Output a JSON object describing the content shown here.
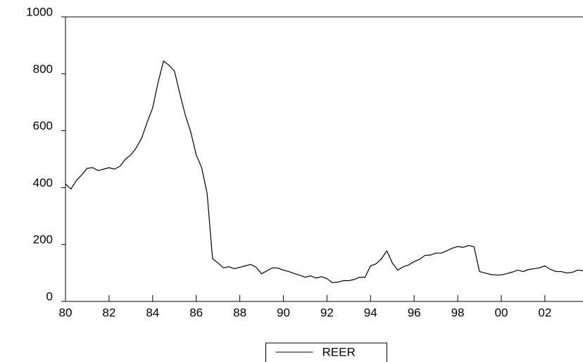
{
  "chart_data": {
    "type": "line",
    "x": [
      80,
      80.25,
      80.5,
      80.75,
      81,
      81.25,
      81.5,
      81.75,
      82,
      82.25,
      82.5,
      82.75,
      83,
      83.25,
      83.5,
      83.75,
      84,
      84.25,
      84.5,
      84.75,
      85,
      85.25,
      85.5,
      85.75,
      86,
      86.25,
      86.5,
      86.75,
      87,
      87.25,
      87.5,
      87.75,
      88,
      88.25,
      88.5,
      88.75,
      89,
      89.25,
      89.5,
      89.75,
      90,
      90.25,
      90.5,
      90.75,
      91,
      91.25,
      91.5,
      91.75,
      92,
      92.25,
      92.5,
      92.75,
      93,
      93.25,
      93.5,
      93.75,
      94,
      94.25,
      94.5,
      94.75,
      95,
      95.25,
      95.5,
      95.75,
      96,
      96.25,
      96.5,
      96.75,
      97,
      97.25,
      97.5,
      97.75,
      98,
      98.25,
      98.5,
      98.75,
      99,
      99.25,
      99.5,
      99.75,
      100,
      100.25,
      100.5,
      100.75,
      101,
      101.25,
      101.5,
      101.75,
      102,
      102.25,
      102.5,
      102.75,
      103,
      103.25,
      103.5,
      103.75
    ],
    "series": [
      {
        "name": "REER",
        "color": "#000000",
        "values": [
          413,
          395,
          425,
          445,
          468,
          470,
          460,
          465,
          470,
          465,
          475,
          500,
          515,
          540,
          575,
          630,
          680,
          770,
          845,
          830,
          810,
          730,
          655,
          595,
          515,
          470,
          380,
          150,
          135,
          118,
          122,
          115,
          120,
          125,
          130,
          120,
          97,
          108,
          118,
          117,
          110,
          105,
          98,
          92,
          85,
          90,
          82,
          87,
          80,
          66,
          68,
          73,
          73,
          77,
          85,
          85,
          125,
          132,
          150,
          178,
          135,
          110,
          122,
          128,
          140,
          148,
          162,
          163,
          170,
          170,
          178,
          187,
          193,
          190,
          197,
          192,
          105,
          100,
          95,
          93,
          93,
          98,
          103,
          110,
          105,
          112,
          115,
          118,
          125,
          113,
          105,
          105,
          100,
          102,
          110,
          108
        ]
      }
    ],
    "xlim": [
      80,
      103.75
    ],
    "xticks": [
      80,
      82,
      84,
      86,
      88,
      90,
      92,
      94,
      96,
      98,
      {
        "value": 100,
        "label": "00"
      },
      {
        "value": 102,
        "label": "02"
      }
    ],
    "ylim": [
      0,
      1000
    ],
    "yticks": [
      0,
      200,
      400,
      600,
      800,
      1000
    ],
    "legend": "bottom"
  }
}
